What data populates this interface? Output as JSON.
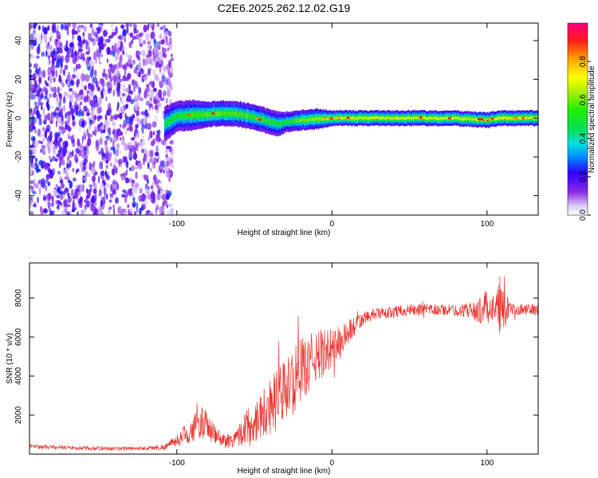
{
  "figure": {
    "title": "C2E6.2025.262.12.02.G19"
  },
  "chart_data": [
    {
      "type": "heatmap",
      "title": "C2E6.2025.262.12.02.G19",
      "xlabel": "Height of straight line (km)",
      "ylabel": "Frequency (Hz)",
      "xlim": [
        -195,
        133
      ],
      "ylim": [
        -50,
        49
      ],
      "x_ticks": [
        {
          "value": -100,
          "label": "-100"
        },
        {
          "value": 0,
          "label": "0"
        },
        {
          "value": 100,
          "label": "100"
        }
      ],
      "y_ticks": [
        {
          "value": -40,
          "label": "-40"
        },
        {
          "value": -20,
          "label": "-20"
        },
        {
          "value": 0,
          "label": "0"
        },
        {
          "value": 20,
          "label": "20"
        },
        {
          "value": 40,
          "label": "40"
        }
      ],
      "colorbar": {
        "label": "Normalized spectral amplitude",
        "range": [
          0,
          1
        ],
        "ticks": [
          {
            "value": 0.0,
            "label": "0.0"
          },
          {
            "value": 0.2,
            "label": "0.2"
          },
          {
            "value": 0.4,
            "label": "0.4"
          },
          {
            "value": 0.6,
            "label": "0.6"
          },
          {
            "value": 0.8,
            "label": "0.8"
          }
        ]
      },
      "noise_region_x": [
        -195,
        -103
      ],
      "signal_track": {
        "x": [
          -108,
          -100,
          -90,
          -80,
          -70,
          -60,
          -50,
          -40,
          -35,
          -30,
          -20,
          -10,
          0,
          20,
          40,
          60,
          80,
          100,
          110,
          133
        ],
        "freq": [
          -3,
          1,
          1.5,
          2,
          2.5,
          2,
          0.5,
          -2,
          -3,
          -2,
          -1,
          -0.5,
          0,
          0,
          0,
          0,
          0,
          -1,
          0,
          0
        ],
        "amplitude": [
          0.3,
          0.4,
          0.5,
          0.55,
          0.6,
          0.55,
          0.5,
          0.4,
          0.35,
          0.4,
          0.6,
          0.7,
          0.8,
          0.85,
          0.85,
          0.85,
          0.85,
          0.8,
          0.95,
          0.85
        ],
        "width_hz": [
          7,
          6,
          6,
          5,
          5,
          5,
          5,
          5,
          5,
          4,
          4,
          4,
          3,
          3,
          3,
          3,
          3,
          3,
          3,
          3
        ]
      }
    },
    {
      "type": "line",
      "xlabel": "Height of straight line (km)",
      "ylabel": "SNR (10 * v/v)",
      "xlim": [
        -195,
        133
      ],
      "ylim": [
        0,
        9800
      ],
      "x_ticks": [
        {
          "value": -100,
          "label": "-100"
        },
        {
          "value": 0,
          "label": "0"
        },
        {
          "value": 100,
          "label": "100"
        }
      ],
      "y_ticks": [
        {
          "value": 2000,
          "label": "2000"
        },
        {
          "value": 4000,
          "label": "4000"
        },
        {
          "value": 6000,
          "label": "6000"
        },
        {
          "value": 8000,
          "label": "8000"
        }
      ],
      "series": [
        {
          "name": "SNR",
          "color": "#e8302a",
          "x": [
            -195,
            -180,
            -160,
            -140,
            -120,
            -108,
            -100,
            -95,
            -90,
            -85,
            -80,
            -75,
            -70,
            -65,
            -60,
            -55,
            -50,
            -45,
            -40,
            -35,
            -30,
            -25,
            -20,
            -15,
            -10,
            -5,
            0,
            5,
            10,
            15,
            20,
            25,
            30,
            40,
            50,
            60,
            70,
            80,
            90,
            95,
            100,
            105,
            108,
            110,
            115,
            120,
            125,
            133
          ],
          "y": [
            400,
            350,
            300,
            280,
            300,
            350,
            700,
            1000,
            1200,
            1700,
            1400,
            900,
            700,
            700,
            1000,
            1400,
            1700,
            2100,
            2500,
            2800,
            3300,
            3700,
            4300,
            4600,
            5000,
            5200,
            5400,
            5700,
            6200,
            6600,
            6900,
            7100,
            7200,
            7300,
            7400,
            7400,
            7400,
            7350,
            7400,
            7300,
            7600,
            7500,
            7300,
            7600,
            7400,
            7450,
            7400,
            7400
          ],
          "noise_amplitude": [
            100,
            100,
            100,
            100,
            100,
            150,
            300,
            500,
            600,
            900,
            700,
            500,
            400,
            400,
            600,
            900,
            1100,
            1300,
            1500,
            1600,
            1700,
            1700,
            1600,
            1500,
            1400,
            1200,
            1100,
            900,
            700,
            500,
            400,
            300,
            300,
            300,
            300,
            300,
            300,
            300,
            400,
            700,
            900,
            600,
            1700,
            1500,
            300,
            300,
            300,
            300
          ]
        }
      ]
    }
  ]
}
